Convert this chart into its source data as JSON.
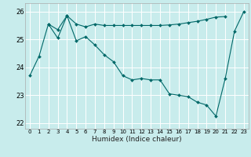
{
  "xlabel": "Humidex (Indice chaleur)",
  "background_color": "#c8ecec",
  "grid_color": "#ffffff",
  "line_color": "#006868",
  "xlim": [
    -0.5,
    23.5
  ],
  "ylim": [
    21.8,
    26.3
  ],
  "yticks": [
    22,
    23,
    24,
    25,
    26
  ],
  "xticks": [
    0,
    1,
    2,
    3,
    4,
    5,
    6,
    7,
    8,
    9,
    10,
    11,
    12,
    13,
    14,
    15,
    16,
    17,
    18,
    19,
    20,
    21,
    22,
    23
  ],
  "series1_x": [
    0,
    1,
    2,
    3,
    4,
    5,
    6,
    7,
    8,
    9,
    10,
    11,
    12,
    13,
    14,
    15,
    16,
    17,
    18,
    19,
    20,
    21,
    22,
    23
  ],
  "series1_y": [
    23.7,
    24.4,
    25.55,
    25.05,
    25.85,
    24.95,
    25.1,
    24.8,
    24.45,
    24.2,
    23.7,
    23.55,
    23.6,
    23.55,
    23.55,
    23.05,
    23.0,
    22.95,
    22.75,
    22.65,
    22.25,
    23.6,
    25.3,
    26.0
  ],
  "series2_x": [
    0,
    1,
    2,
    3,
    4,
    5,
    6,
    7,
    8,
    9,
    10,
    11,
    12,
    13,
    14,
    15,
    16,
    17,
    18,
    19,
    20,
    21,
    22,
    23
  ],
  "series2_y": [
    null,
    null,
    25.55,
    25.35,
    25.85,
    25.55,
    25.45,
    25.55,
    25.5,
    25.5,
    25.5,
    25.5,
    25.5,
    25.5,
    25.5,
    25.52,
    25.55,
    25.6,
    25.65,
    25.72,
    25.8,
    25.82,
    null,
    null
  ]
}
